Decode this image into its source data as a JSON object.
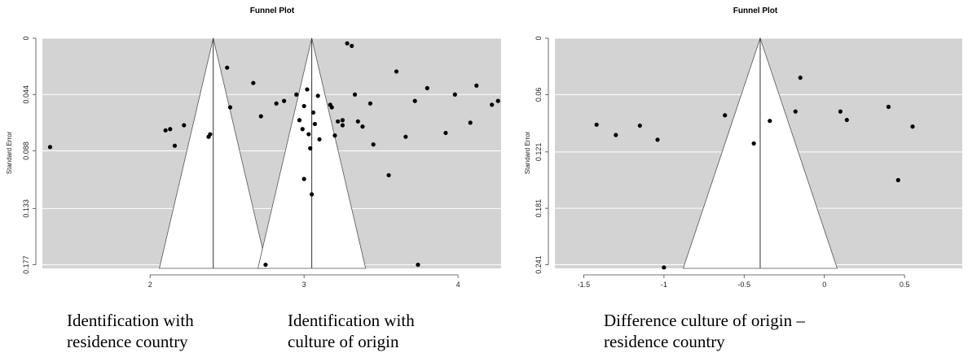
{
  "captions": {
    "left_a": "Identification with\nresidence country",
    "left_b": "Identification with\nculture of origin",
    "right": "Difference culture of origin –\nresidence country"
  },
  "chart_data": [
    {
      "type": "scatter",
      "title": "Funnel Plot",
      "ylabel": "Standard Error",
      "xlim": [
        1.3,
        4.28
      ],
      "ylim": [
        0.1798,
        0
      ],
      "x_ticks": [
        2,
        3,
        4
      ],
      "x_tick_labels": [
        "2",
        "3",
        "4"
      ],
      "y_ticks": [
        0,
        0.044,
        0.088,
        0.133,
        0.177
      ],
      "y_tick_labels": [
        "0",
        "0.044",
        "0.088",
        "0.133",
        "0.177"
      ],
      "grid": true,
      "funnels": [
        {
          "center": 2.41,
          "left_at_max": 2.06,
          "right_at_max": 2.76
        },
        {
          "center": 3.05,
          "left_at_max": 2.7,
          "right_at_max": 3.4
        }
      ],
      "points": [
        {
          "x": 1.35,
          "y": 0.085
        },
        {
          "x": 2.1,
          "y": 0.072
        },
        {
          "x": 2.13,
          "y": 0.071
        },
        {
          "x": 2.16,
          "y": 0.084
        },
        {
          "x": 2.22,
          "y": 0.068
        },
        {
          "x": 2.38,
          "y": 0.077
        },
        {
          "x": 2.39,
          "y": 0.075
        },
        {
          "x": 2.5,
          "y": 0.023
        },
        {
          "x": 2.52,
          "y": 0.054
        },
        {
          "x": 2.72,
          "y": 0.061
        },
        {
          "x": 2.75,
          "y": 0.177
        },
        {
          "x": 3.0,
          "y": 0.11
        },
        {
          "x": 3.25,
          "y": 0.068
        },
        {
          "x": 3.55,
          "y": 0.107
        },
        {
          "x": 3.8,
          "y": 0.039
        },
        {
          "x": 3.92,
          "y": 0.074
        },
        {
          "x": 3.98,
          "y": 0.044
        },
        {
          "x": 4.08,
          "y": 0.066
        },
        {
          "x": 4.12,
          "y": 0.037
        },
        {
          "x": 4.22,
          "y": 0.052
        },
        {
          "x": 4.26,
          "y": 0.049
        },
        {
          "x": 2.67,
          "y": 0.035
        },
        {
          "x": 2.82,
          "y": 0.051
        },
        {
          "x": 2.87,
          "y": 0.049
        },
        {
          "x": 2.95,
          "y": 0.044
        },
        {
          "x": 2.97,
          "y": 0.064
        },
        {
          "x": 2.99,
          "y": 0.071
        },
        {
          "x": 3.0,
          "y": 0.053
        },
        {
          "x": 3.02,
          "y": 0.04
        },
        {
          "x": 3.03,
          "y": 0.075
        },
        {
          "x": 3.04,
          "y": 0.086
        },
        {
          "x": 3.05,
          "y": 0.122
        },
        {
          "x": 3.06,
          "y": 0.058
        },
        {
          "x": 3.07,
          "y": 0.067
        },
        {
          "x": 3.09,
          "y": 0.045
        },
        {
          "x": 3.1,
          "y": 0.079
        },
        {
          "x": 3.17,
          "y": 0.052
        },
        {
          "x": 3.18,
          "y": 0.054
        },
        {
          "x": 3.2,
          "y": 0.076
        },
        {
          "x": 3.22,
          "y": 0.065
        },
        {
          "x": 3.25,
          "y": 0.064
        },
        {
          "x": 3.28,
          "y": 0.004
        },
        {
          "x": 3.31,
          "y": 0.006
        },
        {
          "x": 3.33,
          "y": 0.044
        },
        {
          "x": 3.35,
          "y": 0.065
        },
        {
          "x": 3.38,
          "y": 0.069
        },
        {
          "x": 3.43,
          "y": 0.051
        },
        {
          "x": 3.45,
          "y": 0.083
        },
        {
          "x": 3.6,
          "y": 0.026
        },
        {
          "x": 3.66,
          "y": 0.077
        },
        {
          "x": 3.72,
          "y": 0.049
        },
        {
          "x": 3.74,
          "y": 0.177
        }
      ]
    },
    {
      "type": "scatter",
      "title": "Funnel Plot",
      "ylabel": "Standard Error",
      "xlim": [
        -1.68,
        0.86
      ],
      "ylim": [
        0.2449,
        0
      ],
      "x_ticks": [
        -1.5,
        -1,
        -0.5,
        0,
        0.5
      ],
      "x_tick_labels": [
        "-1.5",
        "-1",
        "-0.5",
        "0",
        "0.5"
      ],
      "y_ticks": [
        0,
        0.06,
        0.121,
        0.181,
        0.241
      ],
      "y_tick_labels": [
        "0",
        "0.06",
        "0.121",
        "0.181",
        "0.241"
      ],
      "grid": true,
      "funnels": [
        {
          "center": -0.4,
          "left_at_max": -0.88,
          "right_at_max": 0.08
        }
      ],
      "points": [
        {
          "x": -1.42,
          "y": 0.092
        },
        {
          "x": -1.3,
          "y": 0.103
        },
        {
          "x": -1.15,
          "y": 0.093
        },
        {
          "x": -1.04,
          "y": 0.108
        },
        {
          "x": -1.0,
          "y": 0.244
        },
        {
          "x": -0.62,
          "y": 0.082
        },
        {
          "x": -0.44,
          "y": 0.112
        },
        {
          "x": -0.34,
          "y": 0.088
        },
        {
          "x": -0.18,
          "y": 0.078
        },
        {
          "x": -0.15,
          "y": 0.042
        },
        {
          "x": 0.1,
          "y": 0.078
        },
        {
          "x": 0.14,
          "y": 0.087
        },
        {
          "x": 0.4,
          "y": 0.073
        },
        {
          "x": 0.46,
          "y": 0.151
        },
        {
          "x": 0.55,
          "y": 0.094
        }
      ]
    }
  ]
}
